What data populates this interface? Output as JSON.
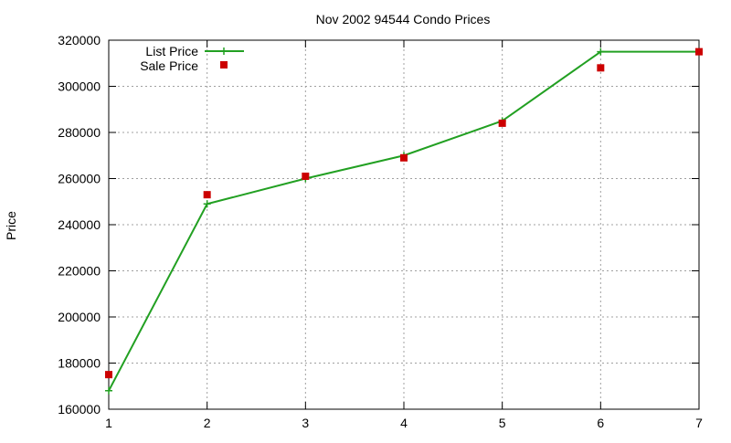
{
  "chart_data": {
    "type": "line",
    "title": "Nov 2002 94544 Condo Prices",
    "xlabel": "",
    "ylabel": "Price",
    "xlim": [
      1,
      7
    ],
    "ylim": [
      160000,
      320000
    ],
    "x_ticks": [
      1,
      2,
      3,
      4,
      5,
      6,
      7
    ],
    "y_ticks": [
      160000,
      180000,
      200000,
      220000,
      240000,
      260000,
      280000,
      300000,
      320000
    ],
    "grid": true,
    "legend_position": "top-left",
    "series": [
      {
        "name": "List Price",
        "style": "line-with-plus-markers",
        "color": "#22a022",
        "x": [
          1,
          2,
          3,
          4,
          5,
          6,
          7
        ],
        "y": [
          168000,
          249000,
          260000,
          270000,
          285000,
          315000,
          315000
        ]
      },
      {
        "name": "Sale Price",
        "style": "square-markers",
        "color": "#cc0000",
        "x": [
          1,
          2,
          3,
          4,
          5,
          6,
          7
        ],
        "y": [
          175000,
          253000,
          261000,
          269000,
          284000,
          308000,
          315000
        ]
      }
    ]
  }
}
